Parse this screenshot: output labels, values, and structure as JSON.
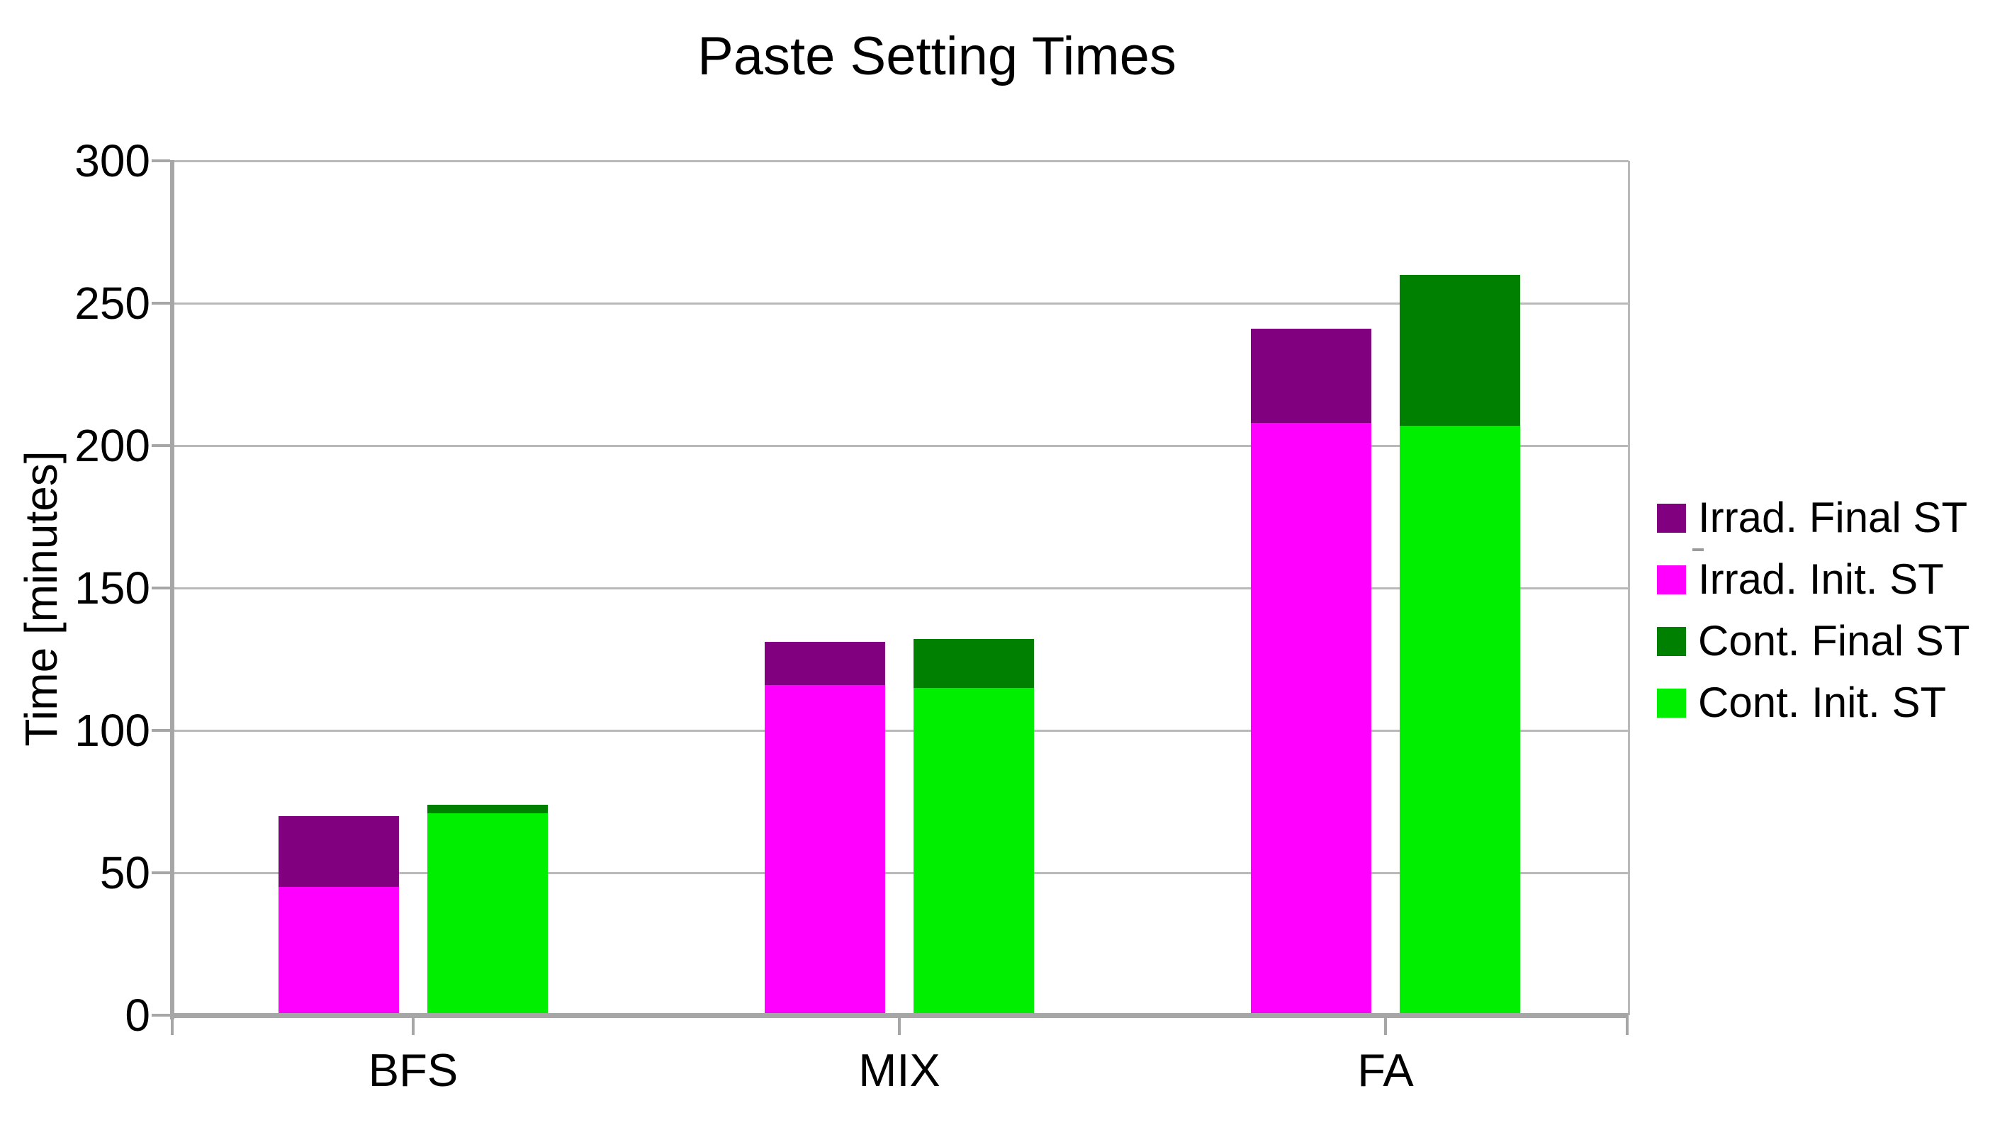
{
  "page": {
    "background": "#ffffff",
    "text_color": "#000000"
  },
  "chart_data": {
    "type": "bar",
    "stacked": true,
    "orientation": "vertical",
    "title": "Paste Setting Times",
    "ylabel": "Time [minutes]",
    "xlabel": "",
    "categories": [
      "BFS",
      "MIX",
      "FA"
    ],
    "ylim": [
      0,
      300
    ],
    "yticks": [
      0,
      50,
      100,
      150,
      200,
      250,
      300
    ],
    "grid": true,
    "grid_color": "#b9b9b9",
    "axis_color": "#a6a6a6",
    "legend_position": "right",
    "series": [
      {
        "name": "Irrad. Final ST",
        "color": "#800080",
        "bar": "irradiated",
        "role": "final_total",
        "values": [
          70,
          131,
          241
        ]
      },
      {
        "name": "Irrad. Init. ST",
        "color": "#ff00ff",
        "bar": "irradiated",
        "role": "init",
        "values": [
          45,
          116,
          208
        ]
      },
      {
        "name": "Cont. Final ST",
        "color": "#008000",
        "bar": "control",
        "role": "final_total",
        "values": [
          74,
          132,
          260
        ]
      },
      {
        "name": "Cont. Init. ST",
        "color": "#00ee00",
        "bar": "control",
        "role": "init",
        "values": [
          71,
          115,
          207
        ]
      }
    ]
  }
}
